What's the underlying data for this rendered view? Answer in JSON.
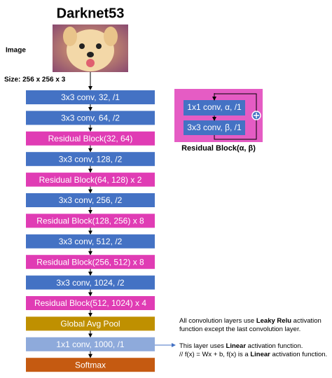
{
  "title": "Darknet53",
  "image_label": "Image",
  "size_label": "Size: 256 x 256 x 3",
  "blocks": [
    {
      "label": "3x3 conv, 32, /1",
      "color": "#4472c4"
    },
    {
      "label": "3x3 conv, 64, /2",
      "color": "#4472c4"
    },
    {
      "label": "Residual Block(32, 64)",
      "color": "#e03cb4"
    },
    {
      "label": "3x3 conv, 128, /2",
      "color": "#4472c4"
    },
    {
      "label": "Residual Block(64, 128) x 2",
      "color": "#e03cb4"
    },
    {
      "label": "3x3 conv, 256, /2",
      "color": "#4472c4"
    },
    {
      "label": "Residual Block(128, 256) x 8",
      "color": "#e03cb4"
    },
    {
      "label": "3x3 conv, 512, /2",
      "color": "#4472c4"
    },
    {
      "label": "Residual Block(256, 512) x 8",
      "color": "#e03cb4"
    },
    {
      "label": "3x3 conv, 1024, /2",
      "color": "#4472c4"
    },
    {
      "label": "Residual Block(512, 1024) x 4",
      "color": "#e03cb4"
    },
    {
      "label": "Global Avg Pool",
      "color": "#bf9000"
    },
    {
      "label": "1x1 conv, 1000, /1",
      "color": "#8eaadb"
    },
    {
      "label": "Softmax",
      "color": "#c55a11"
    }
  ],
  "residual": {
    "inner": [
      "1x1 conv, α, /1",
      "3x3 conv, β, /1"
    ],
    "caption": "Residual Block(α, β)"
  },
  "notes": [
    {
      "lines": [
        [
          "All convolution layers use ",
          "Leaky Relu",
          " activation"
        ],
        [
          "function except the last convolution layer."
        ]
      ]
    },
    {
      "lines": [
        [
          "This layer uses ",
          "Linear",
          " activation function."
        ],
        [
          "// f(x) = Wx + b, f(x) is a ",
          "Linear",
          " activation function."
        ]
      ]
    }
  ]
}
